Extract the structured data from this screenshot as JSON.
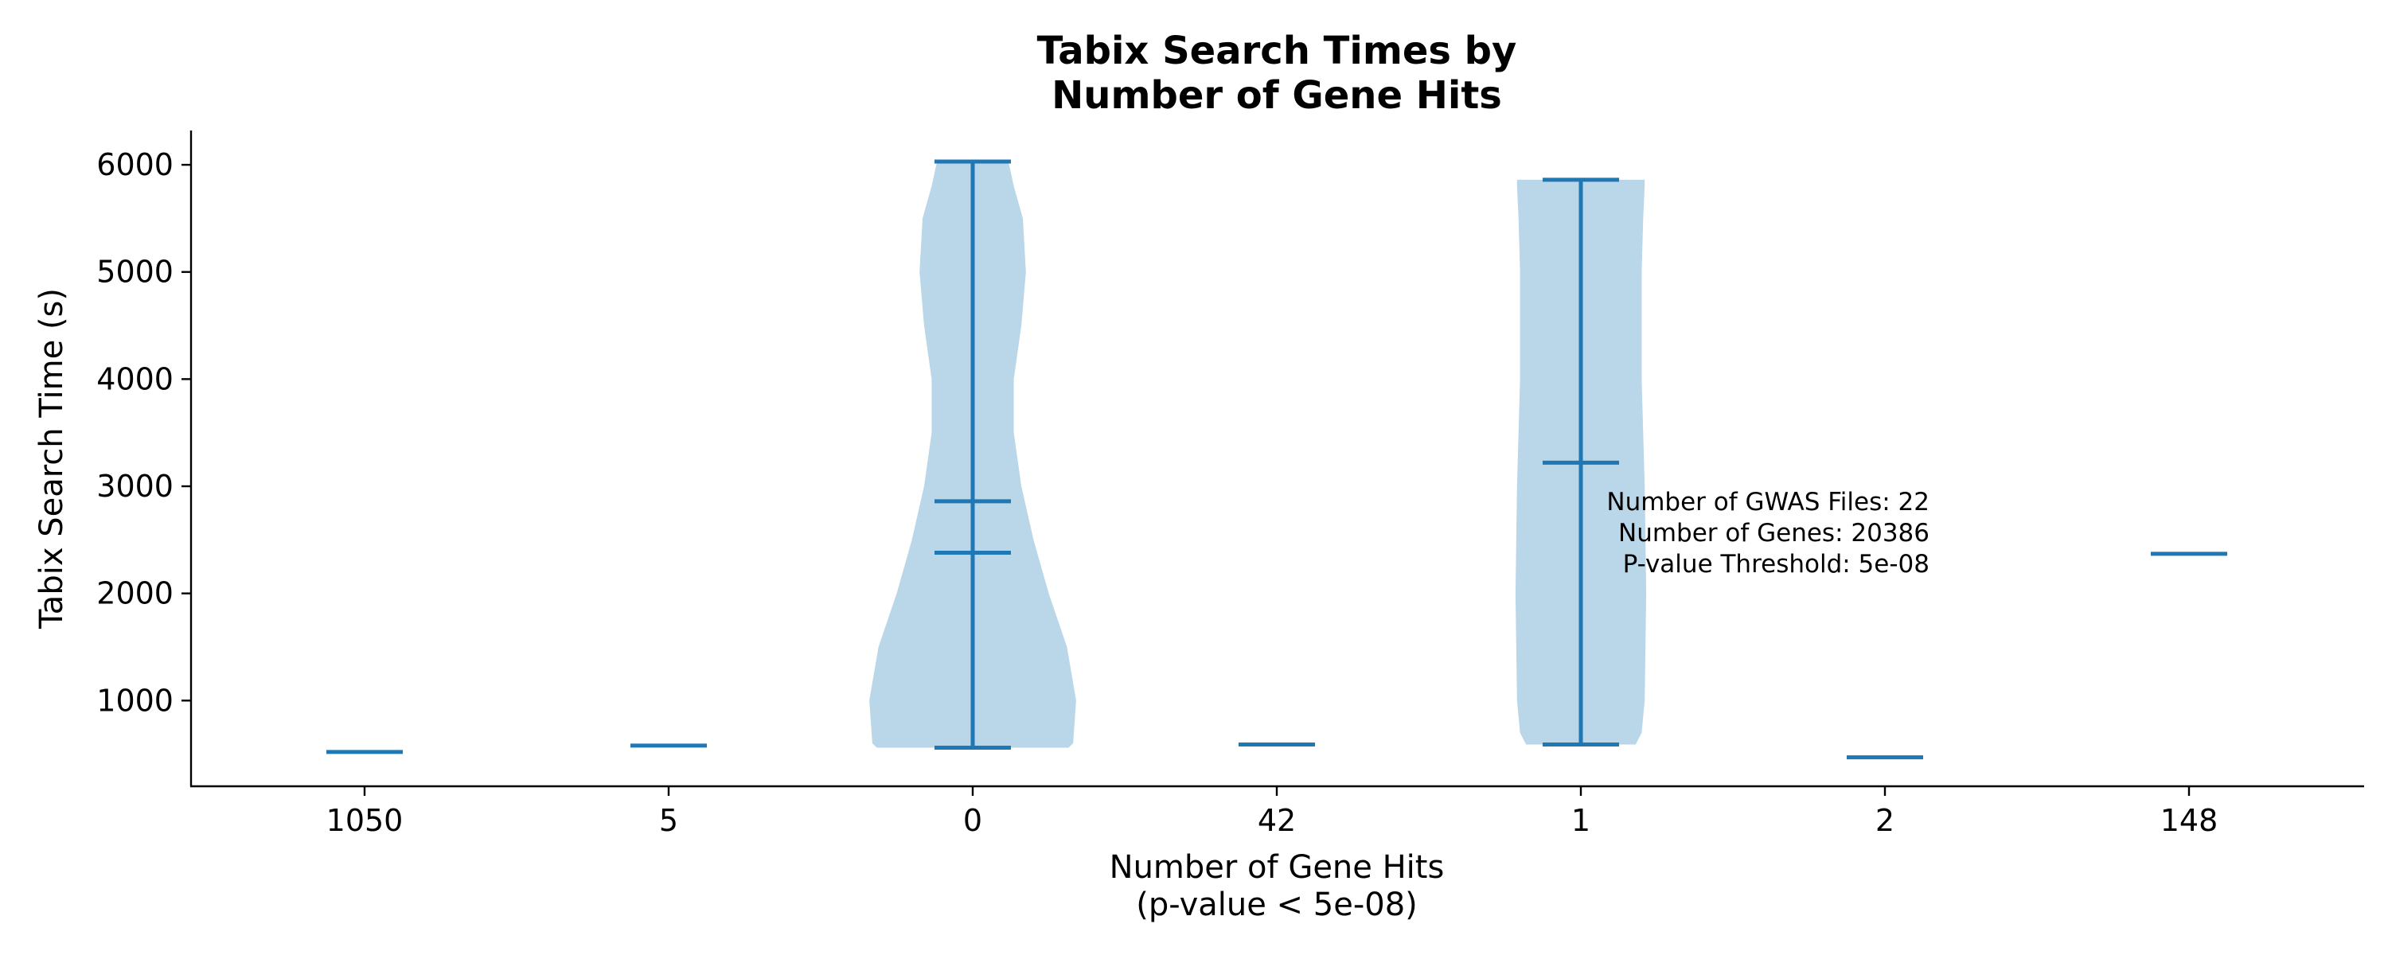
{
  "chart_data": {
    "type": "violin",
    "title": [
      "Tabix Search Times by",
      "Number of Gene Hits"
    ],
    "xlabel": [
      "Number of Gene Hits",
      "(p-value < 5e-08)"
    ],
    "ylabel": "Tabix Search Time (s)",
    "categories": [
      "1050",
      "5",
      "0",
      "42",
      "1",
      "2",
      "148"
    ],
    "ylim": [
      200,
      6320
    ],
    "yticks": [
      1000,
      2000,
      3000,
      4000,
      5000,
      6000
    ],
    "violins": [
      {
        "category": "1050",
        "min": 520,
        "max": 520,
        "mean": 520,
        "median": 520,
        "shape": []
      },
      {
        "category": "5",
        "min": 580,
        "max": 580,
        "mean": 580,
        "median": 580,
        "shape": []
      },
      {
        "category": "0",
        "min": 560,
        "max": 6030,
        "mean": 2860,
        "median": 2380,
        "shape": [
          [
            560,
            0.63
          ],
          [
            600,
            0.66
          ],
          [
            1000,
            0.68
          ],
          [
            1500,
            0.62
          ],
          [
            2000,
            0.5
          ],
          [
            2500,
            0.4
          ],
          [
            3000,
            0.32
          ],
          [
            3500,
            0.27
          ],
          [
            4000,
            0.27
          ],
          [
            4500,
            0.32
          ],
          [
            5000,
            0.35
          ],
          [
            5500,
            0.33
          ],
          [
            5800,
            0.27
          ],
          [
            6000,
            0.24
          ],
          [
            6030,
            0.23
          ]
        ]
      },
      {
        "category": "42",
        "min": 590,
        "max": 590,
        "mean": 590,
        "median": 590,
        "shape": []
      },
      {
        "category": "1",
        "min": 590,
        "max": 5860,
        "mean": 3220,
        "median": 3220,
        "shape": [
          [
            590,
            0.36
          ],
          [
            700,
            0.4
          ],
          [
            1000,
            0.42
          ],
          [
            2000,
            0.43
          ],
          [
            3000,
            0.42
          ],
          [
            4000,
            0.4
          ],
          [
            5000,
            0.4
          ],
          [
            5500,
            0.41
          ],
          [
            5800,
            0.42
          ],
          [
            5860,
            0.42
          ]
        ]
      },
      {
        "category": "2",
        "min": 470,
        "max": 470,
        "mean": 470,
        "median": 470,
        "shape": []
      },
      {
        "category": "148",
        "min": 2370,
        "max": 2370,
        "mean": 2370,
        "median": 2370,
        "shape": []
      }
    ],
    "annotation": [
      "Number of GWAS Files: 22",
      "Number of Genes: 20386",
      "P-value Threshold: 5e-08"
    ],
    "colors": {
      "body": "#bad6e9",
      "line": "#1f77b4"
    },
    "grid": false,
    "legend": "none"
  }
}
